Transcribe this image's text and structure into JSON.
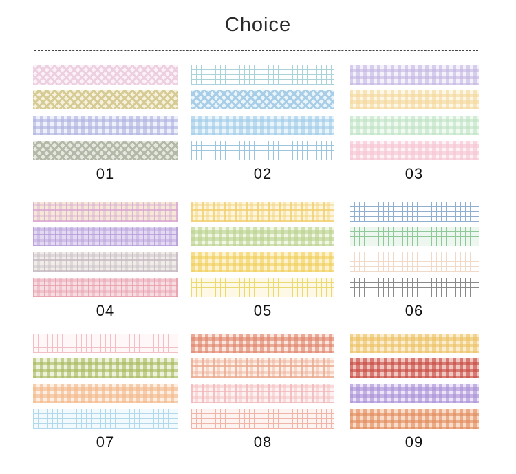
{
  "title": "Choice",
  "sets": [
    {
      "label": "01",
      "tapes": [
        {
          "style": "diag",
          "c": "#eccfe0",
          "bg": "#fbf1f6"
        },
        {
          "style": "diag",
          "c": "#d6cb94",
          "bg": "#f6f1dc"
        },
        {
          "style": "gingham",
          "c": "#aeb1df",
          "bg": "#eef0fa"
        },
        {
          "style": "diag",
          "c": "#b3b9a9",
          "bg": "#e6e8e0"
        }
      ]
    },
    {
      "label": "02",
      "tapes": [
        {
          "style": "grid",
          "c": "#a9d3d9",
          "bg": "#ffffff"
        },
        {
          "style": "diag",
          "c": "#a7cde7",
          "bg": "#e9f4fb"
        },
        {
          "style": "gingham",
          "c": "#9fcbe8",
          "bg": "#eaf5fb"
        },
        {
          "style": "grid",
          "c": "#9cc6e0",
          "bg": "#ffffff"
        }
      ]
    },
    {
      "label": "03",
      "tapes": [
        {
          "style": "gingham",
          "c": "#c3b6e3",
          "bg": "#f4f1fb"
        },
        {
          "style": "gingham",
          "c": "#f5d79a",
          "bg": "#fdf7e8"
        },
        {
          "style": "gingham",
          "c": "#bfe3c4",
          "bg": "#f1faf2"
        },
        {
          "style": "gingham",
          "c": "#f6c3d2",
          "bg": "#fdf2f5"
        }
      ]
    },
    {
      "label": "04",
      "tapes": [
        {
          "style": "tartan",
          "c": "#d8a6d4",
          "bg": "#f5e8d6"
        },
        {
          "style": "tartan",
          "c": "#b39ad8",
          "bg": "#e4d9f2"
        },
        {
          "style": "tartan",
          "c": "#c5b9c2",
          "bg": "#f0ede9"
        },
        {
          "style": "tartan",
          "c": "#e89aa8",
          "bg": "#f6dde2"
        }
      ]
    },
    {
      "label": "05",
      "tapes": [
        {
          "style": "tartan",
          "c": "#f1cf70",
          "bg": "#fdf5dc"
        },
        {
          "style": "gingham",
          "c": "#b9d28e",
          "bg": "#f2f6e4"
        },
        {
          "style": "gingham",
          "c": "#f0cf5c",
          "bg": "#fcf2cf"
        },
        {
          "style": "grid",
          "c": "#e9d970",
          "bg": "#fdf9e6"
        }
      ]
    },
    {
      "label": "06",
      "tapes": [
        {
          "style": "grid",
          "c": "#8faed0",
          "bg": "#ffffff"
        },
        {
          "style": "grid",
          "c": "#8fc99a",
          "bg": "#eef7ef"
        },
        {
          "style": "grid",
          "c": "#f0d9c6",
          "bg": "#ffffff"
        },
        {
          "style": "grid",
          "c": "#8a8a8a",
          "bg": "#ffffff"
        }
      ]
    },
    {
      "label": "07",
      "tapes": [
        {
          "style": "grid",
          "c": "#f2bfc5",
          "bg": "#fff7f8"
        },
        {
          "style": "gingham",
          "c": "#a6b85c",
          "bg": "#eef2dc"
        },
        {
          "style": "gingham",
          "c": "#f3b889",
          "bg": "#fdefe3"
        },
        {
          "style": "grid",
          "c": "#b2d8ec",
          "bg": "#f3fafd"
        }
      ]
    },
    {
      "label": "08",
      "tapes": [
        {
          "style": "gingham",
          "c": "#e0826a",
          "bg": "#fbe5dd"
        },
        {
          "style": "tartan",
          "c": "#eaa98f",
          "bg": "#fdf1ea"
        },
        {
          "style": "tartan",
          "c": "#f2b6b8",
          "bg": "#fdf2f2"
        },
        {
          "style": "grid",
          "c": "#f0b4a9",
          "bg": "#fdf3f1"
        }
      ]
    },
    {
      "label": "09",
      "tapes": [
        {
          "style": "gingham",
          "c": "#ecc164",
          "bg": "#fbeed0"
        },
        {
          "style": "gingham",
          "c": "#c6473f",
          "bg": "#f0c7c1"
        },
        {
          "style": "gingham",
          "c": "#a991d6",
          "bg": "#ece4f7"
        },
        {
          "style": "gingham",
          "c": "#e08a5a",
          "bg": "#f9dcc9"
        }
      ]
    }
  ]
}
